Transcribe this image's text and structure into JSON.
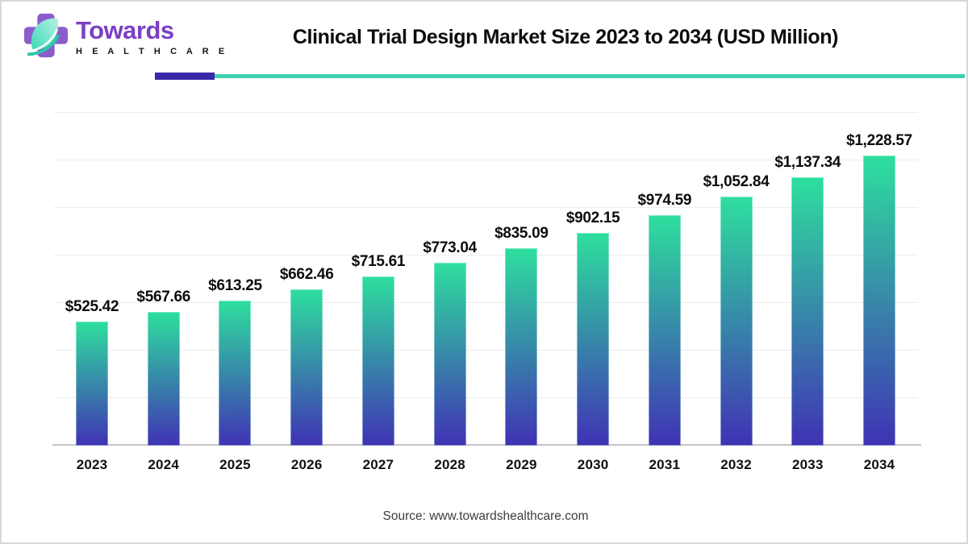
{
  "brand": {
    "name": "Towards",
    "subtitle": "H E A L T H C A R E"
  },
  "header": {
    "title": "Clinical Trial Design Market Size 2023 to 2034 (USD Million)"
  },
  "chart_data": {
    "type": "bar",
    "title": "Clinical Trial Design Market Size 2023 to 2034 (USD Million)",
    "unit": "USD Million",
    "categories": [
      "2023",
      "2024",
      "2025",
      "2026",
      "2027",
      "2028",
      "2029",
      "2030",
      "2031",
      "2032",
      "2033",
      "2034"
    ],
    "values": [
      525.42,
      567.66,
      613.25,
      662.46,
      715.61,
      773.04,
      835.09,
      902.15,
      974.59,
      1052.84,
      1137.34,
      1228.57
    ],
    "value_labels": [
      "$525.42",
      "$567.66",
      "$613.25",
      "$662.46",
      "$715.61",
      "$773.04",
      "$835.09",
      "$902.15",
      "$974.59",
      "$1,052.84",
      "$1,137.34",
      "$1,228.57"
    ],
    "xlabel": "",
    "ylabel": "",
    "ylim": [
      0,
      1400
    ],
    "grid": "horizontal-light",
    "legend": "none",
    "bar_gradient_top": "#2EDF9E",
    "bar_gradient_bottom": "#4032B4"
  },
  "source": {
    "text": "Source: www.towardshealthcare.com"
  },
  "colors": {
    "accent_purple": "#3A28A8",
    "accent_teal": "#3FD0AE",
    "brand_purple": "#7B3FC4",
    "cross_purple": "#8B5CCB",
    "leaf_light": "#A9F0DC",
    "leaf_dark": "#2BC8A8",
    "gridline": "#ECECEC",
    "axis_line": "#C4C4C4"
  }
}
